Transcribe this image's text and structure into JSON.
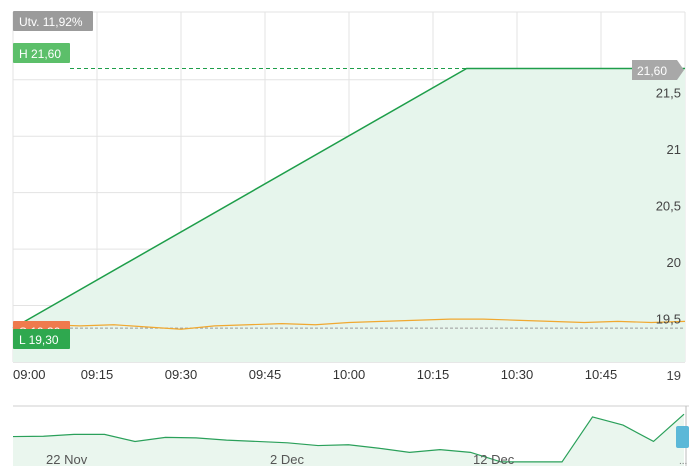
{
  "chart_data": {
    "type": "area",
    "badges": {
      "change": "Utv. 11,92%",
      "high": "H 21,60",
      "low": "L 19,30",
      "prev_close": "S 19,30",
      "last": "21,60"
    },
    "x": [
      "09:00",
      "10:21",
      "11:00"
    ],
    "series": [
      {
        "values": [
          19.3,
          21.6,
          21.6
        ]
      }
    ],
    "compare_series": {
      "x": [
        0,
        6,
        12,
        18,
        24,
        30,
        36,
        42,
        48,
        54,
        60,
        66,
        72,
        78,
        84,
        90,
        96,
        102,
        108,
        114,
        120
      ],
      "values": [
        19.34,
        19.33,
        19.32,
        19.33,
        19.31,
        19.29,
        19.32,
        19.33,
        19.34,
        19.33,
        19.35,
        19.36,
        19.37,
        19.38,
        19.38,
        19.37,
        19.36,
        19.35,
        19.36,
        19.35,
        19.36
      ]
    },
    "high_line": 21.6,
    "low_line": 19.3,
    "xticks": [
      "09:00",
      "09:15",
      "09:30",
      "09:45",
      "10:00",
      "10:15",
      "10:30",
      "10:45"
    ],
    "yticks": [
      "19",
      "19,5",
      "20",
      "20,5",
      "21",
      "21,5"
    ],
    "ylim": [
      19.0,
      22.1
    ],
    "grid": true,
    "navigator": {
      "labels": [
        "22 Nov",
        "2 Dec",
        "12 Dec"
      ],
      "values": [
        20.8,
        20.9,
        21.6,
        21.6,
        19.0,
        20.5,
        20.3,
        19.5,
        19.0,
        18.5,
        17.5,
        17.8,
        16.5,
        15.0,
        16.0,
        15.0,
        11.5,
        11.5,
        11.5,
        28.0,
        25.0,
        19.0,
        29.0
      ],
      "ylim": [
        10,
        32
      ]
    },
    "colors": {
      "main_line": "#1e9e4a",
      "main_fill": "#e6f5ec",
      "compare_line": "#f0a830",
      "change_badge": "#9b9b9b",
      "high_badge": "#5cbf6a",
      "low_badge": "#2fa84f",
      "prev_badge": "#ef7a4d",
      "last_badge": "#a8a8a8",
      "grid": "#e3e3e3",
      "navigator_line": "#2aa05a",
      "navigator_fill": "#eaf6ee",
      "handle": "#5bb8d8"
    }
  }
}
